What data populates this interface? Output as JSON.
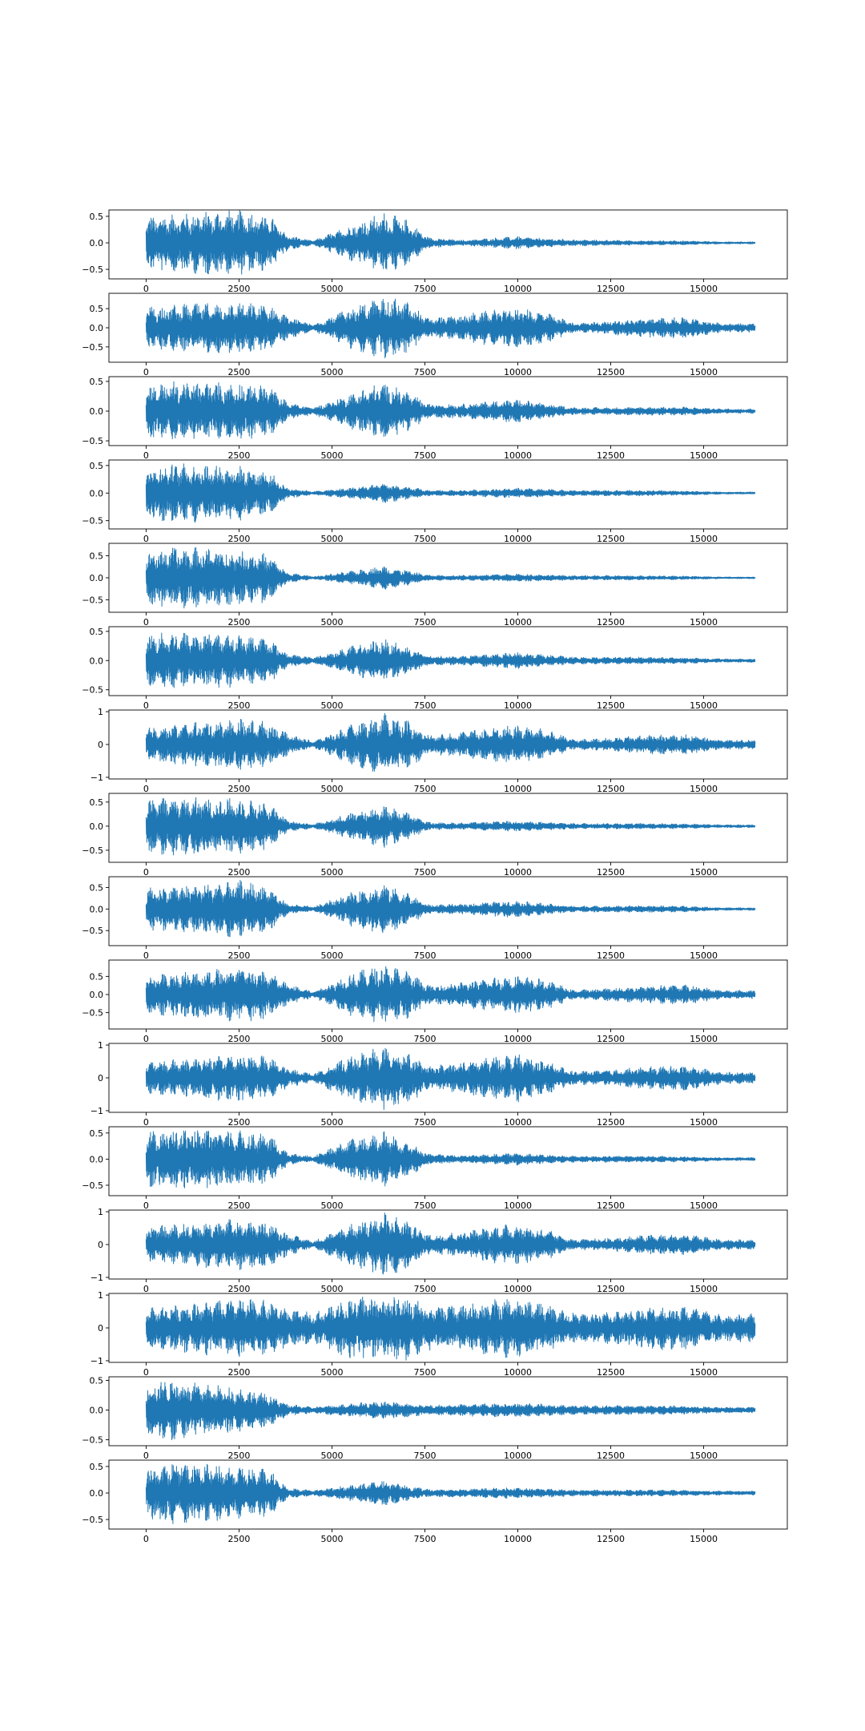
{
  "colors": {
    "line": "#1f77b4",
    "background": "#ffffff",
    "axes": "#000000"
  },
  "chart_data": [
    {
      "type": "line",
      "x_range": [
        0,
        16384
      ],
      "x_ticks": [
        0,
        2500,
        5000,
        7500,
        10000,
        12500,
        15000
      ],
      "ylim": [
        -0.68,
        0.62
      ],
      "y_ticks": [
        -0.5,
        0.0,
        0.5
      ],
      "y_tick_labels": [
        "−0.5",
        "0.0",
        "0.5"
      ],
      "envelope": {
        "x": [
          0,
          600,
          1500,
          2500,
          3300,
          3800,
          4500,
          5500,
          6400,
          7000,
          7600,
          8500,
          9500,
          10000,
          10800,
          11500,
          12500,
          13500,
          14500,
          15500,
          16400
        ],
        "amp": [
          0.5,
          0.55,
          0.6,
          0.62,
          0.55,
          0.15,
          0.04,
          0.35,
          0.58,
          0.45,
          0.1,
          0.05,
          0.1,
          0.12,
          0.08,
          0.06,
          0.05,
          0.04,
          0.04,
          0.02,
          0.02
        ]
      },
      "grid": false,
      "xlabel": "",
      "ylabel": ""
    },
    {
      "type": "line",
      "x_range": [
        0,
        16384
      ],
      "x_ticks": [
        0,
        2500,
        5000,
        7500,
        10000,
        12500,
        15000
      ],
      "ylim": [
        -0.9,
        0.9
      ],
      "y_ticks": [
        -0.5,
        0.0,
        0.5
      ],
      "y_tick_labels": [
        "−0.5",
        "0.0",
        "0.5"
      ],
      "envelope": {
        "x": [
          0,
          600,
          1500,
          2500,
          3300,
          3800,
          4500,
          5500,
          6400,
          7000,
          7600,
          8500,
          9500,
          10000,
          10800,
          11500,
          12500,
          13500,
          14500,
          15500,
          16400
        ],
        "amp": [
          0.55,
          0.6,
          0.65,
          0.68,
          0.6,
          0.3,
          0.08,
          0.55,
          0.85,
          0.7,
          0.25,
          0.35,
          0.5,
          0.55,
          0.4,
          0.12,
          0.18,
          0.25,
          0.28,
          0.12,
          0.12
        ]
      },
      "grid": false,
      "xlabel": "",
      "ylabel": ""
    },
    {
      "type": "line",
      "x_range": [
        0,
        16384
      ],
      "x_ticks": [
        0,
        2500,
        5000,
        7500,
        10000,
        12500,
        15000
      ],
      "ylim": [
        -0.58,
        0.58
      ],
      "y_ticks": [
        -0.5,
        0.0,
        0.5
      ],
      "y_tick_labels": [
        "−0.5",
        "0.0",
        "0.5"
      ],
      "envelope": {
        "x": [
          0,
          600,
          1500,
          2500,
          3300,
          3800,
          4500,
          5500,
          6400,
          7000,
          7600,
          8500,
          9500,
          10000,
          10800,
          11500,
          12500,
          13500,
          14500,
          15500,
          16400
        ],
        "amp": [
          0.45,
          0.5,
          0.5,
          0.48,
          0.45,
          0.15,
          0.06,
          0.3,
          0.5,
          0.35,
          0.12,
          0.12,
          0.18,
          0.2,
          0.12,
          0.06,
          0.06,
          0.07,
          0.07,
          0.04,
          0.04
        ]
      },
      "grid": false,
      "xlabel": "",
      "ylabel": ""
    },
    {
      "type": "line",
      "x_range": [
        0,
        16384
      ],
      "x_ticks": [
        0,
        2500,
        5000,
        7500,
        10000,
        12500,
        15000
      ],
      "ylim": [
        -0.65,
        0.6
      ],
      "y_ticks": [
        -0.5,
        0.0,
        0.5
      ],
      "y_tick_labels": [
        "−0.5",
        "0.0",
        "0.5"
      ],
      "envelope": {
        "x": [
          0,
          600,
          1500,
          2500,
          3300,
          3800,
          4500,
          5500,
          6400,
          7000,
          7600,
          8500,
          9500,
          10000,
          10800,
          11500,
          12500,
          13500,
          14500,
          15500,
          16400
        ],
        "amp": [
          0.5,
          0.55,
          0.55,
          0.5,
          0.4,
          0.1,
          0.03,
          0.1,
          0.18,
          0.12,
          0.05,
          0.05,
          0.08,
          0.09,
          0.07,
          0.05,
          0.05,
          0.05,
          0.04,
          0.02,
          0.02
        ]
      },
      "grid": false,
      "xlabel": "",
      "ylabel": ""
    },
    {
      "type": "line",
      "x_range": [
        0,
        16384
      ],
      "x_ticks": [
        0,
        2500,
        5000,
        7500,
        10000,
        12500,
        15000
      ],
      "ylim": [
        -0.78,
        0.78
      ],
      "y_ticks": [
        -0.5,
        0.0,
        0.5
      ],
      "y_tick_labels": [
        "−0.5",
        "0.0",
        "0.5"
      ],
      "envelope": {
        "x": [
          0,
          600,
          1500,
          2500,
          3300,
          3800,
          4500,
          5500,
          6400,
          7000,
          7600,
          8500,
          9500,
          10000,
          10800,
          11500,
          12500,
          13500,
          14500,
          15500,
          16400
        ],
        "amp": [
          0.6,
          0.7,
          0.7,
          0.65,
          0.55,
          0.12,
          0.03,
          0.15,
          0.28,
          0.18,
          0.06,
          0.06,
          0.08,
          0.09,
          0.07,
          0.05,
          0.05,
          0.05,
          0.04,
          0.02,
          0.02
        ]
      },
      "grid": false,
      "xlabel": "",
      "ylabel": ""
    },
    {
      "type": "line",
      "x_range": [
        0,
        16384
      ],
      "x_ticks": [
        0,
        2500,
        5000,
        7500,
        10000,
        12500,
        15000
      ],
      "ylim": [
        -0.6,
        0.58
      ],
      "y_ticks": [
        -0.5,
        0.0,
        0.5
      ],
      "y_tick_labels": [
        "−0.5",
        "0.0",
        "0.5"
      ],
      "envelope": {
        "x": [
          0,
          600,
          1500,
          2500,
          3300,
          3800,
          4500,
          5500,
          6400,
          7000,
          7600,
          8500,
          9500,
          10000,
          10800,
          11500,
          12500,
          13500,
          14500,
          15500,
          16400
        ],
        "amp": [
          0.45,
          0.5,
          0.5,
          0.45,
          0.4,
          0.12,
          0.05,
          0.25,
          0.38,
          0.25,
          0.08,
          0.08,
          0.12,
          0.14,
          0.1,
          0.06,
          0.06,
          0.06,
          0.05,
          0.03,
          0.03
        ]
      },
      "grid": false,
      "xlabel": "",
      "ylabel": ""
    },
    {
      "type": "line",
      "x_range": [
        0,
        16384
      ],
      "x_ticks": [
        0,
        2500,
        5000,
        7500,
        10000,
        12500,
        15000
      ],
      "ylim": [
        -1.05,
        1.05
      ],
      "y_ticks": [
        -1,
        0,
        1
      ],
      "y_tick_labels": [
        "−1",
        "0",
        "1"
      ],
      "envelope": {
        "x": [
          0,
          600,
          1500,
          2500,
          3300,
          3800,
          4500,
          5500,
          6400,
          7000,
          7600,
          8500,
          9500,
          10000,
          10800,
          11500,
          12500,
          13500,
          14500,
          15500,
          16400
        ],
        "amp": [
          0.55,
          0.6,
          0.7,
          0.8,
          0.7,
          0.35,
          0.1,
          0.6,
          0.95,
          0.8,
          0.3,
          0.4,
          0.55,
          0.6,
          0.45,
          0.15,
          0.2,
          0.3,
          0.32,
          0.15,
          0.15
        ]
      },
      "grid": false,
      "xlabel": "",
      "ylabel": ""
    },
    {
      "type": "line",
      "x_range": [
        0,
        16384
      ],
      "x_ticks": [
        0,
        2500,
        5000,
        7500,
        10000,
        12500,
        15000
      ],
      "ylim": [
        -0.75,
        0.68
      ],
      "y_ticks": [
        -0.5,
        0.0,
        0.5
      ],
      "y_tick_labels": [
        "−0.5",
        "0.0",
        "0.5"
      ],
      "envelope": {
        "x": [
          0,
          600,
          1500,
          2500,
          3300,
          3800,
          4500,
          5500,
          6400,
          7000,
          7600,
          8500,
          9500,
          10000,
          10800,
          11500,
          12500,
          13500,
          14500,
          15500,
          16400
        ],
        "amp": [
          0.55,
          0.62,
          0.6,
          0.58,
          0.5,
          0.12,
          0.04,
          0.28,
          0.45,
          0.3,
          0.08,
          0.07,
          0.1,
          0.11,
          0.08,
          0.06,
          0.06,
          0.06,
          0.05,
          0.03,
          0.03
        ]
      },
      "grid": false,
      "xlabel": "",
      "ylabel": ""
    },
    {
      "type": "line",
      "x_range": [
        0,
        16384
      ],
      "x_ticks": [
        0,
        2500,
        5000,
        7500,
        10000,
        12500,
        15000
      ],
      "ylim": [
        -0.85,
        0.75
      ],
      "y_ticks": [
        -0.5,
        0.0,
        0.5
      ],
      "y_tick_labels": [
        "−0.5",
        "0.0",
        "0.5"
      ],
      "envelope": {
        "x": [
          0,
          600,
          1500,
          2500,
          3300,
          3800,
          4500,
          5500,
          6400,
          7000,
          7600,
          8500,
          9500,
          10000,
          10800,
          11500,
          12500,
          13500,
          14500,
          15500,
          16400
        ],
        "amp": [
          0.5,
          0.55,
          0.6,
          0.68,
          0.55,
          0.12,
          0.05,
          0.4,
          0.6,
          0.4,
          0.1,
          0.12,
          0.18,
          0.2,
          0.12,
          0.07,
          0.07,
          0.08,
          0.07,
          0.03,
          0.03
        ]
      },
      "grid": false,
      "xlabel": "",
      "ylabel": ""
    },
    {
      "type": "line",
      "x_range": [
        0,
        16384
      ],
      "x_ticks": [
        0,
        2500,
        5000,
        7500,
        10000,
        12500,
        15000
      ],
      "ylim": [
        -0.95,
        0.95
      ],
      "y_ticks": [
        -0.5,
        0.0,
        0.5
      ],
      "y_tick_labels": [
        "−0.5",
        "0.0",
        "0.5"
      ],
      "envelope": {
        "x": [
          0,
          600,
          1500,
          2500,
          3300,
          3800,
          4500,
          5500,
          6400,
          7000,
          7600,
          8500,
          9500,
          10000,
          10800,
          11500,
          12500,
          13500,
          14500,
          15500,
          16400
        ],
        "amp": [
          0.55,
          0.6,
          0.7,
          0.78,
          0.65,
          0.3,
          0.08,
          0.6,
          0.85,
          0.7,
          0.25,
          0.35,
          0.5,
          0.55,
          0.4,
          0.12,
          0.18,
          0.25,
          0.28,
          0.12,
          0.12
        ]
      },
      "grid": false,
      "xlabel": "",
      "ylabel": ""
    },
    {
      "type": "line",
      "x_range": [
        0,
        16384
      ],
      "x_ticks": [
        0,
        2500,
        5000,
        7500,
        10000,
        12500,
        15000
      ],
      "ylim": [
        -1.05,
        1.05
      ],
      "y_ticks": [
        -1,
        0,
        1
      ],
      "y_tick_labels": [
        "−1",
        "0",
        "1"
      ],
      "envelope": {
        "x": [
          0,
          600,
          1500,
          2500,
          3300,
          3800,
          4500,
          5500,
          6400,
          7000,
          7600,
          8500,
          9500,
          10000,
          10800,
          11500,
          12500,
          13500,
          14500,
          15500,
          16400
        ],
        "amp": [
          0.5,
          0.55,
          0.65,
          0.75,
          0.65,
          0.3,
          0.12,
          0.7,
          0.98,
          0.85,
          0.35,
          0.5,
          0.7,
          0.75,
          0.5,
          0.2,
          0.25,
          0.35,
          0.4,
          0.18,
          0.18
        ]
      },
      "grid": false,
      "xlabel": "",
      "ylabel": ""
    },
    {
      "type": "line",
      "x_range": [
        0,
        16384
      ],
      "x_ticks": [
        0,
        2500,
        5000,
        7500,
        10000,
        12500,
        15000
      ],
      "ylim": [
        -0.7,
        0.62
      ],
      "y_ticks": [
        -0.5,
        0.0,
        0.5
      ],
      "y_tick_labels": [
        "−0.5",
        "0.0",
        "0.5"
      ],
      "envelope": {
        "x": [
          0,
          600,
          1500,
          2500,
          3300,
          3800,
          4500,
          5500,
          6400,
          7000,
          7600,
          8500,
          9500,
          10000,
          10800,
          11500,
          12500,
          13500,
          14500,
          15500,
          16400
        ],
        "amp": [
          0.55,
          0.6,
          0.58,
          0.55,
          0.5,
          0.12,
          0.05,
          0.4,
          0.55,
          0.38,
          0.1,
          0.07,
          0.1,
          0.12,
          0.08,
          0.06,
          0.06,
          0.06,
          0.05,
          0.03,
          0.03
        ]
      },
      "grid": false,
      "xlabel": "",
      "ylabel": ""
    },
    {
      "type": "line",
      "x_range": [
        0,
        16384
      ],
      "x_ticks": [
        0,
        2500,
        5000,
        7500,
        10000,
        12500,
        15000
      ],
      "ylim": [
        -1.05,
        1.05
      ],
      "y_ticks": [
        -1,
        0,
        1
      ],
      "y_tick_labels": [
        "−1",
        "0",
        "1"
      ],
      "envelope": {
        "x": [
          0,
          600,
          1500,
          2500,
          3300,
          3800,
          4500,
          5500,
          6400,
          7000,
          7600,
          8500,
          9500,
          10000,
          10800,
          11500,
          12500,
          13500,
          14500,
          15500,
          16400
        ],
        "amp": [
          0.55,
          0.6,
          0.7,
          0.8,
          0.7,
          0.35,
          0.1,
          0.65,
          0.98,
          0.8,
          0.3,
          0.4,
          0.6,
          0.65,
          0.45,
          0.15,
          0.2,
          0.3,
          0.32,
          0.15,
          0.15
        ]
      },
      "grid": false,
      "xlabel": "",
      "ylabel": ""
    },
    {
      "type": "line",
      "x_range": [
        0,
        16384
      ],
      "x_ticks": [
        0,
        2500,
        5000,
        7500,
        10000,
        12500,
        15000
      ],
      "ylim": [
        -1.05,
        1.05
      ],
      "y_ticks": [
        -1,
        0,
        1
      ],
      "y_tick_labels": [
        "−1",
        "0",
        "1"
      ],
      "envelope": {
        "x": [
          0,
          600,
          1500,
          2500,
          3300,
          3800,
          4500,
          5500,
          6400,
          7000,
          7600,
          8500,
          9500,
          10000,
          10800,
          11500,
          12500,
          13500,
          14500,
          15500,
          16400
        ],
        "amp": [
          0.6,
          0.7,
          0.82,
          0.9,
          0.85,
          0.6,
          0.45,
          0.98,
          1.0,
          1.0,
          0.7,
          0.7,
          0.9,
          0.95,
          0.75,
          0.45,
          0.5,
          0.65,
          0.7,
          0.4,
          0.45
        ]
      },
      "grid": false,
      "xlabel": "",
      "ylabel": ""
    },
    {
      "type": "line",
      "x_range": [
        0,
        16384
      ],
      "x_ticks": [
        0,
        2500,
        5000,
        7500,
        10000,
        12500,
        15000
      ],
      "ylim": [
        -0.6,
        0.56
      ],
      "y_ticks": [
        -0.5,
        0.0,
        0.5
      ],
      "y_tick_labels": [
        "−0.5",
        "0.0",
        "0.5"
      ],
      "envelope": {
        "x": [
          0,
          600,
          1500,
          2500,
          3300,
          3800,
          4500,
          5500,
          6400,
          7000,
          7600,
          8500,
          9500,
          10000,
          10800,
          11500,
          12500,
          13500,
          14500,
          15500,
          16400
        ],
        "amp": [
          0.45,
          0.55,
          0.45,
          0.38,
          0.28,
          0.1,
          0.05,
          0.12,
          0.15,
          0.12,
          0.08,
          0.1,
          0.12,
          0.12,
          0.1,
          0.08,
          0.08,
          0.08,
          0.07,
          0.05,
          0.05
        ]
      },
      "grid": false,
      "xlabel": "",
      "ylabel": ""
    },
    {
      "type": "line",
      "x_range": [
        0,
        16384
      ],
      "x_ticks": [
        0,
        2500,
        5000,
        7500,
        10000,
        12500,
        15000
      ],
      "ylim": [
        -0.68,
        0.62
      ],
      "y_ticks": [
        -0.5,
        0.0,
        0.5
      ],
      "y_tick_labels": [
        "−0.5",
        "0.0",
        "0.5"
      ],
      "envelope": {
        "x": [
          0,
          600,
          1500,
          2500,
          3300,
          3800,
          4500,
          5500,
          6400,
          7000,
          7600,
          8500,
          9500,
          10000,
          10800,
          11500,
          12500,
          13500,
          14500,
          15500,
          16400
        ],
        "amp": [
          0.5,
          0.6,
          0.55,
          0.5,
          0.45,
          0.1,
          0.05,
          0.15,
          0.25,
          0.15,
          0.07,
          0.08,
          0.1,
          0.1,
          0.08,
          0.06,
          0.06,
          0.06,
          0.05,
          0.04,
          0.04
        ]
      },
      "grid": false,
      "xlabel": "",
      "ylabel": ""
    }
  ]
}
